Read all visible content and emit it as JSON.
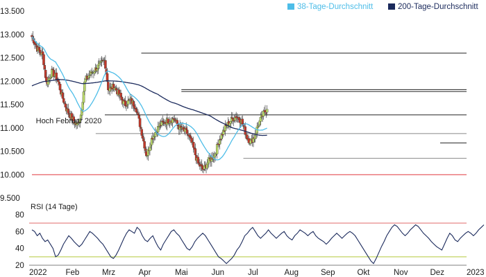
{
  "chart_data": [
    {
      "type": "candlestick",
      "legend": [
        {
          "name": "38-Tage-Durchschnitt",
          "color": "#4dbde8"
        },
        {
          "name": "200-Tage-Durchschnitt",
          "color": "#1b2a5c"
        }
      ],
      "colors": {
        "up": "#b8d66a",
        "down": "#c0392b",
        "ma38": "#4dbde8",
        "ma200": "#1b2a5c",
        "support": "#e0393e"
      },
      "ylim": [
        9500,
        13500
      ],
      "y_ticks": [
        "13.500",
        "13.000",
        "12.500",
        "12.000",
        "11.500",
        "11.000",
        "10.500",
        "10.000",
        "9.500"
      ],
      "y_tick_values": [
        13500,
        13000,
        12500,
        12000,
        11500,
        11000,
        10500,
        10000,
        9500
      ],
      "x_ticks": [
        "2022",
        "Feb",
        "Mrz",
        "Apr",
        "Mai",
        "Jun",
        "Jul",
        "Aug",
        "Sep",
        "Okt",
        "Nov",
        "Dez",
        "2023"
      ],
      "x_tick_months": [
        0,
        1,
        2,
        3,
        4,
        5,
        6,
        7,
        8,
        9,
        10,
        11,
        12
      ],
      "close_anchors": [
        [
          0.0,
          12950
        ],
        [
          0.15,
          12700
        ],
        [
          0.3,
          12550
        ],
        [
          0.4,
          11950
        ],
        [
          0.55,
          12200
        ],
        [
          0.7,
          12050
        ],
        [
          0.82,
          11700
        ],
        [
          0.95,
          11400
        ],
        [
          1.1,
          11200
        ],
        [
          1.25,
          11050
        ],
        [
          1.35,
          11300
        ],
        [
          1.45,
          12000
        ],
        [
          1.6,
          12150
        ],
        [
          1.8,
          12300
        ],
        [
          2.0,
          12450
        ],
        [
          2.1,
          11800
        ],
        [
          2.25,
          11900
        ],
        [
          2.4,
          11700
        ],
        [
          2.55,
          11500
        ],
        [
          2.7,
          11600
        ],
        [
          2.85,
          11450
        ],
        [
          3.0,
          10950
        ],
        [
          3.15,
          10400
        ],
        [
          3.3,
          10800
        ],
        [
          3.5,
          11050
        ],
        [
          3.7,
          11150
        ],
        [
          3.9,
          11200
        ],
        [
          4.05,
          11000
        ],
        [
          4.25,
          10900
        ],
        [
          4.4,
          10650
        ],
        [
          4.55,
          10250
        ],
        [
          4.7,
          10100
        ],
        [
          4.85,
          10300
        ],
        [
          5.0,
          10400
        ],
        [
          5.15,
          10750
        ],
        [
          5.3,
          11000
        ],
        [
          5.45,
          11150
        ],
        [
          5.6,
          11250
        ],
        [
          5.75,
          11150
        ],
        [
          5.9,
          10800
        ],
        [
          6.0,
          10700
        ],
        [
          6.1,
          10800
        ],
        [
          6.2,
          11050
        ],
        [
          6.35,
          11300
        ],
        [
          6.45,
          11400
        ]
      ],
      "horizontal_lines": [
        {
          "value": 12600,
          "from_month": 3.0,
          "to_month": 12.5,
          "color": "#222222"
        },
        {
          "value": 11820,
          "from_month": 4.1,
          "to_month": 12.5,
          "color": "#222222"
        },
        {
          "value": 11780,
          "from_month": 4.1,
          "to_month": 12.5,
          "color": "#222222"
        },
        {
          "value": 11280,
          "from_month": 2.0,
          "to_month": 12.5,
          "color": "#222222"
        },
        {
          "value": 10880,
          "from_month": 1.75,
          "to_month": 12.5,
          "color": "#888888"
        },
        {
          "value": 10680,
          "from_month": 11.2,
          "to_month": 12.5,
          "color": "#222222"
        },
        {
          "value": 10350,
          "from_month": 5.8,
          "to_month": 12.5,
          "color": "#888888"
        },
        {
          "value": 10000,
          "from_month": 0,
          "to_month": 12.5,
          "color": "#e0393e"
        }
      ],
      "annotations": [
        {
          "text": "Hoch Februar 2020",
          "value": 11160,
          "month": 0.05
        }
      ]
    },
    {
      "type": "line",
      "title": "RSI (14 Tage)",
      "ylim": [
        20,
        80
      ],
      "y_ticks": [
        "80",
        "60",
        "40",
        "20"
      ],
      "y_tick_values": [
        80,
        60,
        40,
        20
      ],
      "reference_lines": [
        {
          "value": 70,
          "color": "#e06a6a"
        },
        {
          "value": 30,
          "color": "#b3c93a"
        }
      ],
      "color": "#1b2a5c",
      "series": [
        {
          "values": [
            62,
            60,
            55,
            58,
            52,
            48,
            50,
            45,
            40,
            30,
            32,
            38,
            45,
            50,
            55,
            52,
            48,
            45,
            42,
            45,
            50,
            55,
            60,
            58,
            55,
            52,
            48,
            45,
            40,
            35,
            30,
            28,
            32,
            38,
            45,
            52,
            58,
            62,
            60,
            58,
            65,
            62,
            55,
            50,
            48,
            52,
            55,
            48,
            42,
            38,
            45,
            50,
            55,
            60,
            62,
            58,
            55,
            50,
            45,
            40,
            38,
            42,
            48,
            52,
            55,
            58,
            55,
            50,
            45,
            40,
            35,
            30,
            28,
            25,
            22,
            25,
            28,
            32,
            38,
            42,
            48,
            55,
            58,
            62,
            65,
            60,
            55,
            52,
            55,
            58,
            62,
            58,
            55,
            52,
            55,
            58,
            60,
            55,
            52,
            50,
            55,
            58,
            62,
            60,
            58,
            55,
            58,
            60,
            55,
            52,
            50,
            48,
            45,
            48,
            52,
            55,
            58,
            55,
            52,
            55,
            58,
            60,
            58,
            55,
            50,
            45,
            40,
            35,
            30,
            25,
            22,
            28,
            35,
            42,
            48,
            55,
            60,
            65,
            68,
            66,
            62,
            58,
            55,
            58,
            62,
            65,
            68,
            66,
            62,
            58,
            55,
            52,
            48,
            45,
            42,
            40,
            38,
            45,
            52,
            58,
            55,
            50,
            48,
            52,
            55,
            58,
            60,
            58,
            55,
            58,
            62,
            65,
            68
          ]
        }
      ]
    }
  ]
}
